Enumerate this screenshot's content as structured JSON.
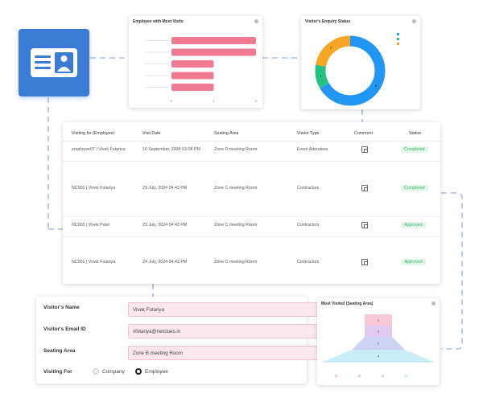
{
  "colors": {
    "accent_blue": "#3a7bd5",
    "bar_pink": "#f07a92",
    "donut_blue": "#2196f3",
    "donut_green": "#26c281",
    "donut_orange": "#f5a623",
    "badge_green_bg": "#e3f6ea",
    "badge_green_fg": "#3bb06b",
    "funnel_top": "#f7c9d8",
    "funnel_2": "#e3c9f0",
    "funnel_3": "#cdd3f0",
    "funnel_4": "#c9ecf7"
  },
  "visitor_card": {
    "icon": "visitor-id-card-icon"
  },
  "bar_chart_card": {
    "title": "Employee with Most Visits",
    "x_ticks": [
      "0",
      "1",
      "2"
    ]
  },
  "donut_card": {
    "title": "Visitor's Enquiry Status"
  },
  "funnel_card": {
    "title": "Most Visited (Seating Area)"
  },
  "chart_data": [
    {
      "type": "bar",
      "title": "Employee with Most Visits",
      "orientation": "horizontal",
      "categories": [
        "",
        "",
        "",
        "",
        ""
      ],
      "values": [
        2,
        2,
        1,
        1,
        1
      ],
      "xlim": [
        0,
        2
      ]
    },
    {
      "type": "pie",
      "title": "Visitor's Enquiry Status",
      "labels": [
        "",
        "",
        ""
      ],
      "values": [
        6,
        1,
        2
      ],
      "legend": "top-right"
    },
    {
      "type": "bar",
      "title": "Most Visited (Seating Area)",
      "style": "funnel",
      "categories": [
        "",
        "",
        "",
        ""
      ],
      "values": [
        1,
        1,
        2,
        4
      ],
      "legend": "bottom"
    }
  ],
  "table": {
    "headers": [
      "Visiting for (Employee)",
      "Visit Date",
      "Seating Area",
      "Visitor Type",
      "Comment",
      "Status"
    ],
    "rows": [
      {
        "employee": "employee07 | Vivek Fotariya",
        "date": "16 September, 2024 02:08 PM",
        "area": "Zone D meeting Room",
        "type": "Event Attendees",
        "status": "Completed"
      },
      {
        "employee": "NC001 | Vivek Fotariya",
        "date": "23 July, 2024 04:43 PM",
        "area": "Zone C meeting Room",
        "type": "Contractors",
        "status": "Completed"
      },
      {
        "employee": "NC002 | Vivek Patel",
        "date": "23 July, 2024 04:43 PM",
        "area": "Zone C meeting Room",
        "type": "Contractors",
        "status": "Approved"
      },
      {
        "employee": "NC001 | Vivek Fotariya",
        "date": "24 July, 2024 04:43 PM",
        "area": "Zone C meeting Room",
        "type": "Contractors",
        "status": "Approved"
      }
    ]
  },
  "form": {
    "name_label": "Visitor's Name",
    "name_value": "Vivek Fotariya",
    "email_label": "Visitor's Email ID",
    "email_value": "vfotariya@netclues.in",
    "seating_label": "Seating Area",
    "seating_value": "Zone B meeting Room",
    "visiting_label": "Visiting For",
    "option_company": "Company",
    "option_employee": "Employee",
    "selected": "Employee"
  }
}
